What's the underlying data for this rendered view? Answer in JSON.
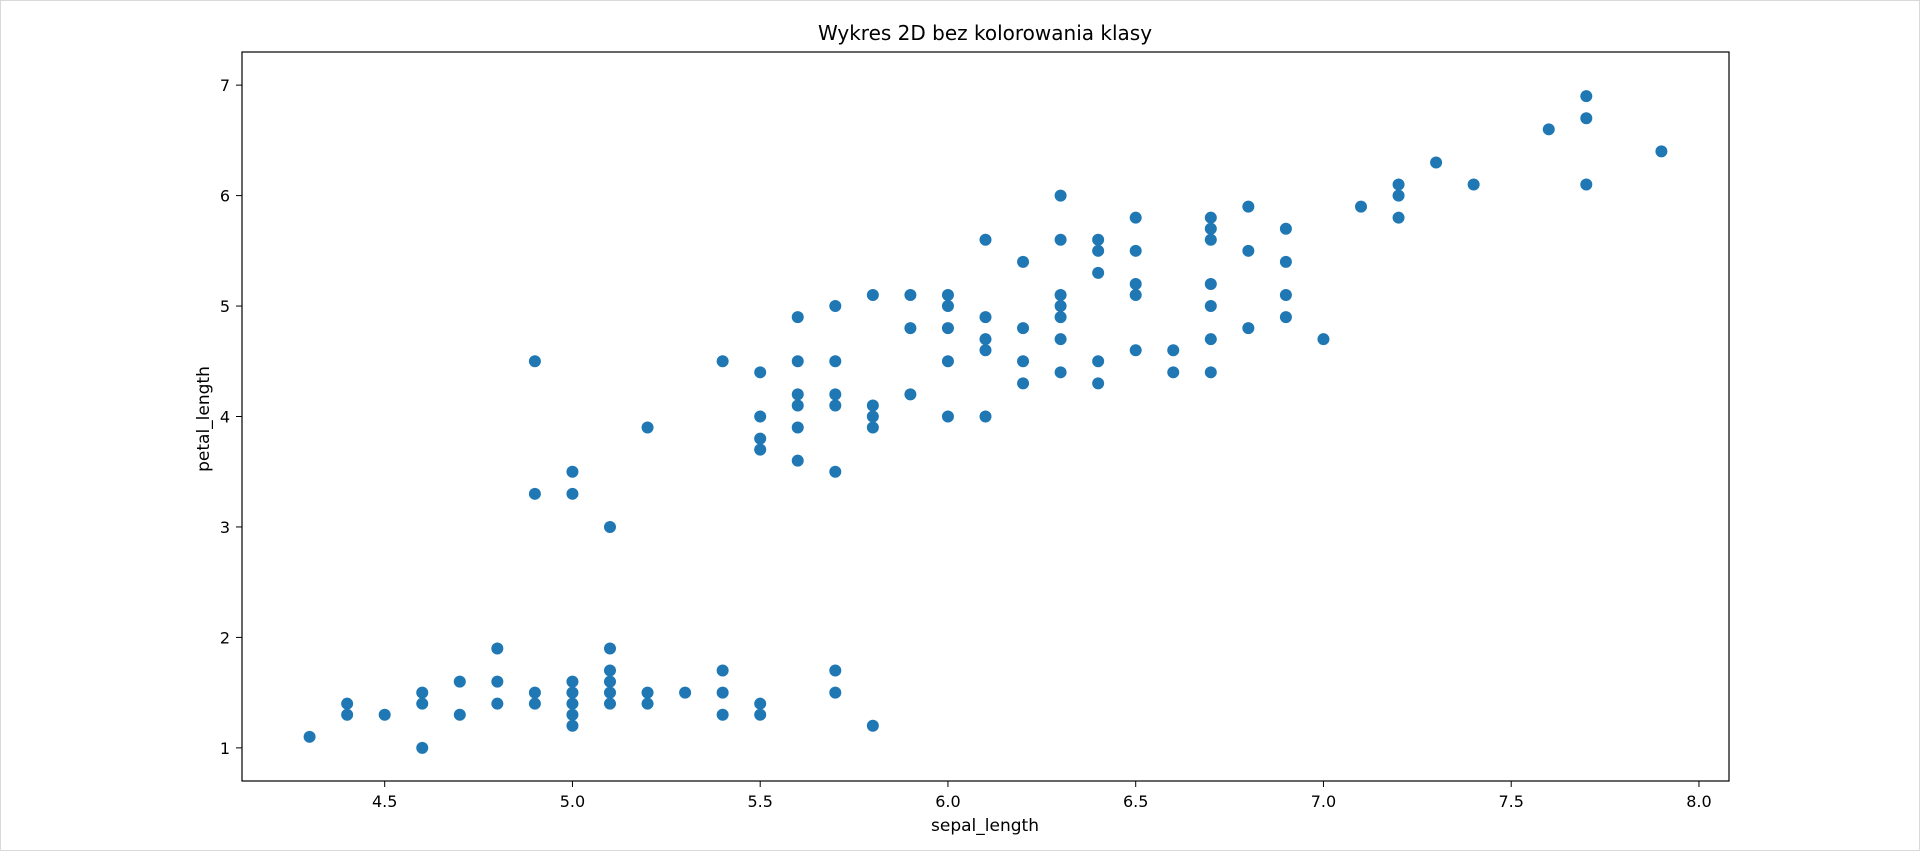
{
  "chart_data": {
    "type": "scatter",
    "title": "Wykres 2D bez kolorowania klasy",
    "xlabel": "sepal_length",
    "ylabel": "petal_length",
    "xlim": [
      4.12,
      8.08
    ],
    "ylim": [
      0.7,
      7.3
    ],
    "xticks": [
      "4.5",
      "5.0",
      "5.5",
      "6.0",
      "6.5",
      "7.0",
      "7.5",
      "8.0"
    ],
    "yticks": [
      "1",
      "2",
      "3",
      "4",
      "5",
      "6",
      "7"
    ],
    "grid": false,
    "marker_color": "#1f77b4",
    "series": [
      {
        "points": [
          [
            4.3,
            1.1
          ],
          [
            4.4,
            1.3
          ],
          [
            4.4,
            1.4
          ],
          [
            4.5,
            1.3
          ],
          [
            4.6,
            1.0
          ],
          [
            4.6,
            1.4
          ],
          [
            4.6,
            1.5
          ],
          [
            4.7,
            1.3
          ],
          [
            4.7,
            1.6
          ],
          [
            4.8,
            1.4
          ],
          [
            4.8,
            1.6
          ],
          [
            4.8,
            1.9
          ],
          [
            4.9,
            1.4
          ],
          [
            4.9,
            1.5
          ],
          [
            5.0,
            1.2
          ],
          [
            5.0,
            1.3
          ],
          [
            5.0,
            1.4
          ],
          [
            5.0,
            1.5
          ],
          [
            5.0,
            1.6
          ],
          [
            5.1,
            1.4
          ],
          [
            5.1,
            1.5
          ],
          [
            5.1,
            1.6
          ],
          [
            5.1,
            1.7
          ],
          [
            5.1,
            1.9
          ],
          [
            5.2,
            1.4
          ],
          [
            5.2,
            1.5
          ],
          [
            5.3,
            1.5
          ],
          [
            5.4,
            1.3
          ],
          [
            5.4,
            1.5
          ],
          [
            5.4,
            1.7
          ],
          [
            5.5,
            1.3
          ],
          [
            5.5,
            1.4
          ],
          [
            5.7,
            1.5
          ],
          [
            5.7,
            1.7
          ],
          [
            5.8,
            1.2
          ],
          [
            4.9,
            3.3
          ],
          [
            4.9,
            4.5
          ],
          [
            5.0,
            3.3
          ],
          [
            5.0,
            3.5
          ],
          [
            5.1,
            3.0
          ],
          [
            5.2,
            3.9
          ],
          [
            5.4,
            4.5
          ],
          [
            5.5,
            3.7
          ],
          [
            5.5,
            3.8
          ],
          [
            5.5,
            4.0
          ],
          [
            5.5,
            4.4
          ],
          [
            5.6,
            3.6
          ],
          [
            5.6,
            3.9
          ],
          [
            5.6,
            4.1
          ],
          [
            5.6,
            4.2
          ],
          [
            5.6,
            4.5
          ],
          [
            5.6,
            4.9
          ],
          [
            5.7,
            3.5
          ],
          [
            5.7,
            4.1
          ],
          [
            5.7,
            4.2
          ],
          [
            5.7,
            4.5
          ],
          [
            5.7,
            5.0
          ],
          [
            5.8,
            3.9
          ],
          [
            5.8,
            4.0
          ],
          [
            5.8,
            4.1
          ],
          [
            5.8,
            5.1
          ],
          [
            5.9,
            4.2
          ],
          [
            5.9,
            4.8
          ],
          [
            5.9,
            5.1
          ],
          [
            6.0,
            4.0
          ],
          [
            6.0,
            4.5
          ],
          [
            6.0,
            4.8
          ],
          [
            6.0,
            5.0
          ],
          [
            6.0,
            5.1
          ],
          [
            6.1,
            4.0
          ],
          [
            6.1,
            4.6
          ],
          [
            6.1,
            4.7
          ],
          [
            6.1,
            4.9
          ],
          [
            6.1,
            5.6
          ],
          [
            6.2,
            4.3
          ],
          [
            6.2,
            4.5
          ],
          [
            6.2,
            4.8
          ],
          [
            6.2,
            5.4
          ],
          [
            6.3,
            4.4
          ],
          [
            6.3,
            4.7
          ],
          [
            6.3,
            4.9
          ],
          [
            6.3,
            5.0
          ],
          [
            6.3,
            5.1
          ],
          [
            6.3,
            5.6
          ],
          [
            6.3,
            6.0
          ],
          [
            6.4,
            4.3
          ],
          [
            6.4,
            4.5
          ],
          [
            6.4,
            5.3
          ],
          [
            6.4,
            5.5
          ],
          [
            6.4,
            5.6
          ],
          [
            6.5,
            4.6
          ],
          [
            6.5,
            5.1
          ],
          [
            6.5,
            5.2
          ],
          [
            6.5,
            5.5
          ],
          [
            6.5,
            5.8
          ],
          [
            6.6,
            4.4
          ],
          [
            6.6,
            4.6
          ],
          [
            6.7,
            4.4
          ],
          [
            6.7,
            4.7
          ],
          [
            6.7,
            5.0
          ],
          [
            6.7,
            5.2
          ],
          [
            6.7,
            5.6
          ],
          [
            6.7,
            5.7
          ],
          [
            6.7,
            5.8
          ],
          [
            6.8,
            4.8
          ],
          [
            6.8,
            5.5
          ],
          [
            6.8,
            5.9
          ],
          [
            6.9,
            4.9
          ],
          [
            6.9,
            5.1
          ],
          [
            6.9,
            5.4
          ],
          [
            6.9,
            5.7
          ],
          [
            7.0,
            4.7
          ],
          [
            7.1,
            5.9
          ],
          [
            7.2,
            5.8
          ],
          [
            7.2,
            6.0
          ],
          [
            7.2,
            6.1
          ],
          [
            7.3,
            6.3
          ],
          [
            7.4,
            6.1
          ],
          [
            7.6,
            6.6
          ],
          [
            7.7,
            6.1
          ],
          [
            7.7,
            6.7
          ],
          [
            7.7,
            6.9
          ],
          [
            7.9,
            6.4
          ]
        ]
      }
    ]
  }
}
